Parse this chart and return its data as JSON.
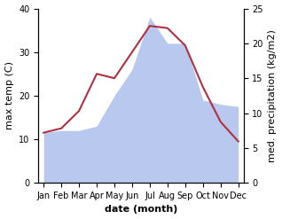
{
  "months": [
    "Jan",
    "Feb",
    "Mar",
    "Apr",
    "May",
    "Jun",
    "Jul",
    "Aug",
    "Sep",
    "Oct",
    "Nov",
    "Dec"
  ],
  "month_positions": [
    0,
    1,
    2,
    3,
    4,
    5,
    6,
    7,
    8,
    9,
    10,
    11
  ],
  "temperature": [
    11.5,
    12.5,
    16.5,
    25.0,
    24.0,
    30.0,
    36.0,
    35.5,
    31.5,
    22.0,
    14.0,
    9.5
  ],
  "precipitation": [
    11.5,
    12.0,
    12.0,
    13.0,
    20.0,
    26.0,
    38.0,
    32.0,
    32.0,
    19.0,
    18.0,
    17.5
  ],
  "temp_color": "#b03040",
  "precip_fill_color": "#b8c8ee",
  "temp_ylim": [
    0,
    40
  ],
  "right_ylim": [
    0,
    25
  ],
  "xlabel": "date (month)",
  "ylabel_left": "max temp (C)",
  "ylabel_right": "med. precipitation (kg/m2)",
  "left_yticks": [
    0,
    10,
    20,
    30,
    40
  ],
  "right_ytick_positions": [
    0,
    5,
    10,
    15,
    20,
    25
  ],
  "axis_label_fontsize": 8,
  "tick_fontsize": 7,
  "linewidth": 1.5
}
